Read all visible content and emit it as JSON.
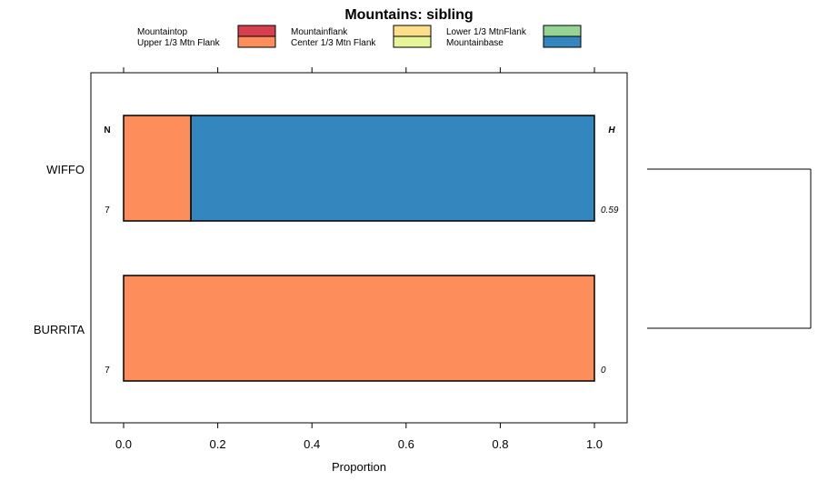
{
  "chart_data": {
    "type": "bar",
    "orientation": "horizontal-stacked-proportion",
    "title": "Mountains: sibling",
    "xlabel": "Proportion",
    "ylabel": "",
    "xlim": [
      -0.07,
      1.07
    ],
    "x_ticks": [
      "0.0",
      "0.2",
      "0.4",
      "0.6",
      "0.8",
      "1.0"
    ],
    "x_tick_values": [
      0,
      0.2,
      0.4,
      0.6,
      0.8,
      1.0
    ],
    "grid": false,
    "legend_position": "top",
    "legend": [
      {
        "name": "Mountaintop",
        "color": "#d6404e"
      },
      {
        "name": "Upper 1/3 Mtn Flank",
        "color": "#fd8d5a"
      },
      {
        "name": "Mountainflank",
        "color": "#fddf8a"
      },
      {
        "name": "Center 1/3 Mtn Flank",
        "color": "#e6f598"
      },
      {
        "name": "Lower 1/3 MtnFlank",
        "color": "#95d495"
      },
      {
        "name": "Mountainbase",
        "color": "#3487be"
      }
    ],
    "categories": [
      "WIFFO",
      "BURRITA"
    ],
    "bars": [
      {
        "label": "WIFFO",
        "n": "7",
        "h": "0.59",
        "segments": [
          {
            "series": "Upper 1/3 Mtn Flank",
            "value": 0.143,
            "color": "#fd8d5a"
          },
          {
            "series": "Mountainbase",
            "value": 0.857,
            "color": "#3487be"
          }
        ]
      },
      {
        "label": "BURRITA",
        "n": "7",
        "h": "0",
        "segments": [
          {
            "series": "Upper 1/3 Mtn Flank",
            "value": 1.0,
            "color": "#fd8d5a"
          }
        ]
      }
    ],
    "column_headers": {
      "left": "N",
      "right": "H"
    }
  }
}
